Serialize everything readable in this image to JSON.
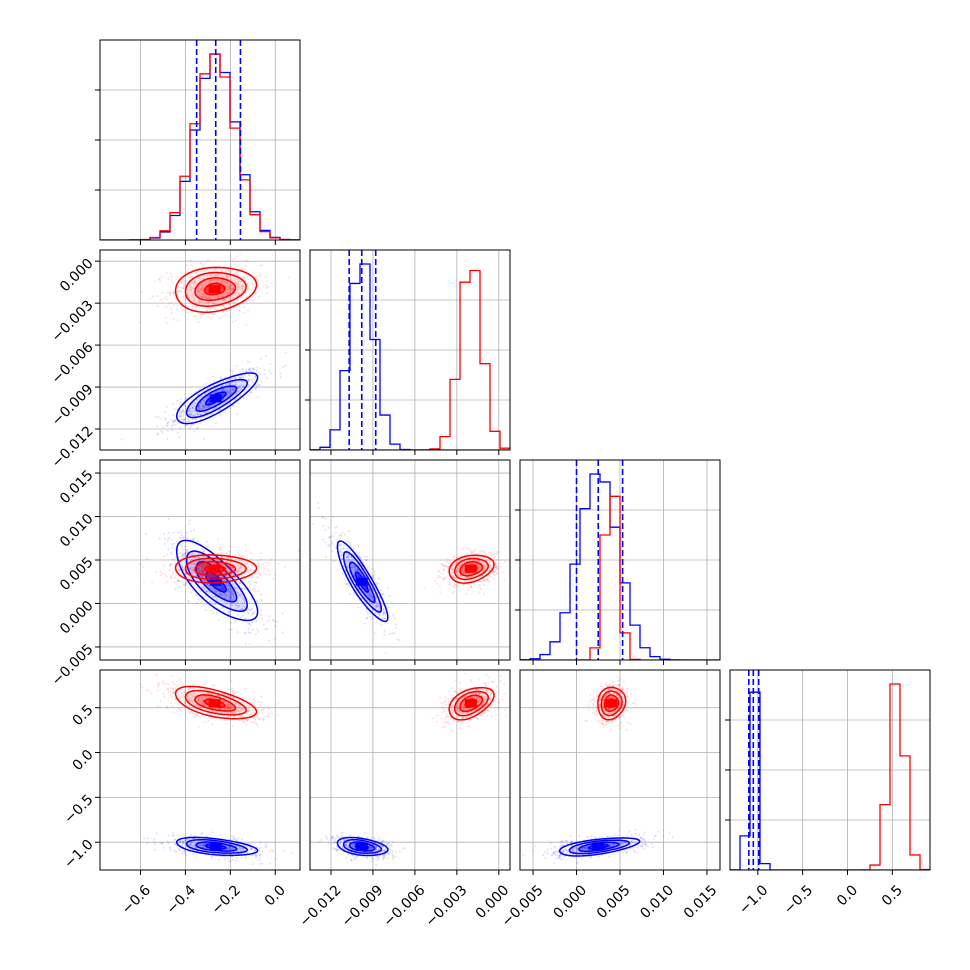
{
  "chart_data": {
    "type": "corner",
    "title": "",
    "grid": true,
    "colors": {
      "blue": "#0000ff",
      "red": "#ff0000",
      "grid": "#b0b0b0"
    },
    "parameters": [
      {
        "range": [
          -0.78,
          0.11
        ],
        "ticks": [
          -0.6,
          -0.4,
          -0.2,
          0.0
        ],
        "tick_labels": [
          "−0.6",
          "−0.4",
          "−0.2",
          "0.0"
        ]
      },
      {
        "range": [
          -0.0135,
          0.0008
        ],
        "ticks": [
          -0.012,
          -0.009,
          -0.006,
          -0.003,
          0.0
        ],
        "tick_labels": [
          "−0.012",
          "−0.009",
          "−0.006",
          "−0.003",
          "0.000"
        ]
      },
      {
        "range": [
          -0.0065,
          0.0165
        ],
        "ticks": [
          -0.005,
          0.0,
          0.005,
          0.01,
          0.015
        ],
        "tick_labels": [
          "−0.005",
          "0.000",
          "0.005",
          "0.010",
          "0.015"
        ]
      },
      {
        "range": [
          -1.31,
          0.92
        ],
        "ticks": [
          -1.0,
          -0.5,
          0.0,
          0.5
        ],
        "tick_labels": [
          "−1.0",
          "−0.5",
          "0.0",
          "0.5"
        ]
      }
    ],
    "series": [
      {
        "color": "#0000ff",
        "mean": [
          -0.265,
          -0.0098,
          0.0025,
          -1.05
        ],
        "std": [
          0.09,
          0.0009,
          0.0023,
          0.05
        ],
        "quantiles": [
          [
            -0.35,
            -0.265,
            -0.155
          ],
          [
            -0.0107,
            -0.0098,
            -0.0088
          ],
          [
            0.0,
            0.0025,
            0.0053
          ],
          [
            -1.1,
            -1.05,
            -0.99
          ]
        ],
        "correlations": [
          [
            1,
            0.78,
            -0.75,
            -0.45
          ],
          [
            0.78,
            1,
            -0.88,
            -0.35
          ],
          [
            -0.75,
            -0.88,
            1,
            0.55
          ],
          [
            -0.45,
            -0.35,
            0.55,
            1
          ]
        ]
      },
      {
        "color": "#ff0000",
        "mean": [
          -0.27,
          -0.002,
          0.004,
          0.55
        ],
        "std": [
          0.09,
          0.0008,
          0.0008,
          0.09
        ],
        "correlations": [
          [
            1,
            0.15,
            0.0,
            -0.55
          ],
          [
            0.15,
            1,
            0.25,
            0.45
          ],
          [
            0.0,
            0.25,
            1,
            0.1
          ],
          [
            -0.55,
            0.45,
            0.1,
            1
          ]
        ]
      }
    ]
  }
}
